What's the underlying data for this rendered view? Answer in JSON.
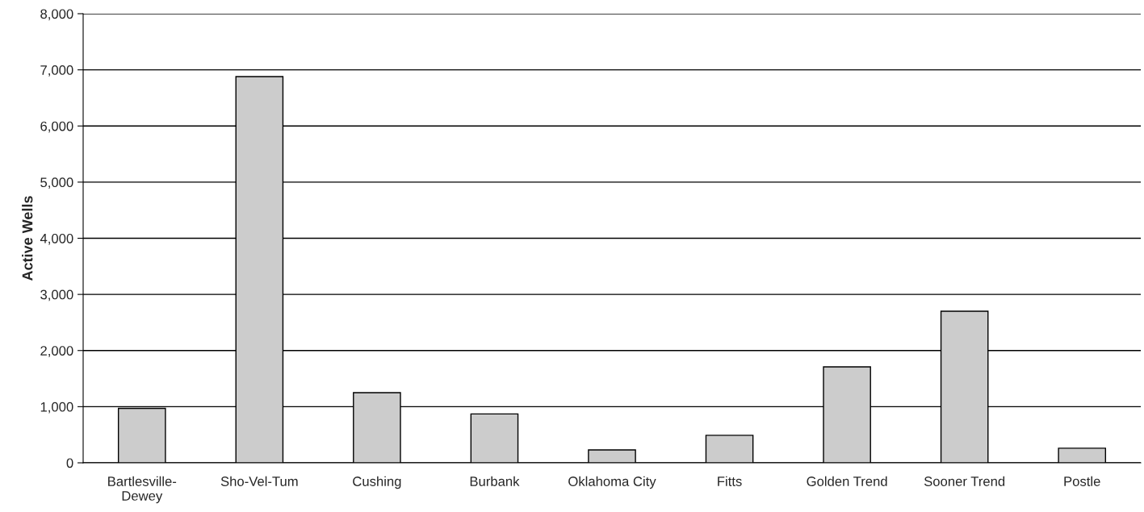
{
  "chart_data": {
    "type": "bar",
    "ylabel": "Active Wells",
    "categories": [
      "Bartlesville-\nDewey",
      "Sho-Vel-Tum",
      "Cushing",
      "Burbank",
      "Oklahoma City",
      "Fitts",
      "Golden Trend",
      "Sooner Trend",
      "Postle"
    ],
    "values": [
      970,
      6880,
      1250,
      870,
      230,
      490,
      1710,
      2700,
      260
    ],
    "color": "#cccccc",
    "ylim": [
      0,
      8000
    ],
    "yticks": [
      {
        "value": 0,
        "label": "0"
      },
      {
        "value": 1000,
        "label": "1,000"
      },
      {
        "value": 2000,
        "label": "2,000"
      },
      {
        "value": 3000,
        "label": "3,000"
      },
      {
        "value": 4000,
        "label": "4,000"
      },
      {
        "value": 5000,
        "label": "5,000"
      },
      {
        "value": 6000,
        "label": "6,000"
      },
      {
        "value": 7000,
        "label": "7,000"
      },
      {
        "value": 8000,
        "label": "8,000"
      }
    ],
    "grid": "y"
  }
}
